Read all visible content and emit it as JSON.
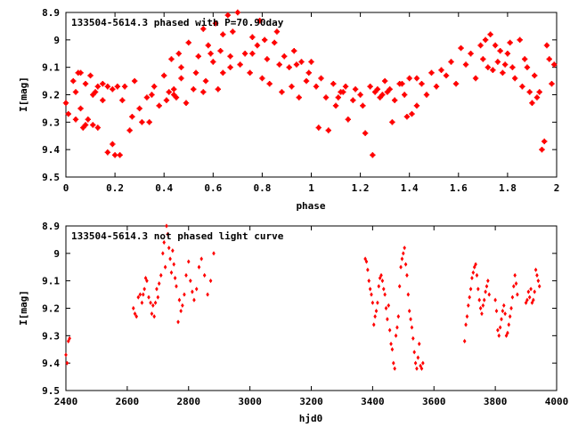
{
  "colors": {
    "marker": "#ff0000",
    "axis": "#000000",
    "background": "#ffffff"
  },
  "chart_data": [
    {
      "type": "scatter",
      "title": "133504-5614.3 phased with P=70.90day",
      "xlabel": "phase",
      "ylabel": "I[mag]",
      "xlim": [
        0,
        2
      ],
      "ylim": [
        8.9,
        9.5
      ],
      "y_inverted": true,
      "xticks": [
        "0",
        "0.2",
        "0.4",
        "0.6",
        "0.8",
        "1",
        "1.2",
        "1.4",
        "1.6",
        "1.8",
        "2"
      ],
      "yticks": [
        "8.9",
        "9",
        "9.1",
        "9.2",
        "9.3",
        "9.4",
        "9.5"
      ],
      "grid": false,
      "marker": "star",
      "x": [
        0.0,
        0.01,
        0.03,
        0.04,
        0.05,
        0.06,
        0.07,
        0.08,
        0.09,
        0.1,
        0.11,
        0.12,
        0.13,
        0.15,
        0.17,
        0.19,
        0.2,
        0.21,
        0.22,
        0.23,
        0.24,
        0.26,
        0.27,
        0.28,
        0.3,
        0.31,
        0.33,
        0.34,
        0.36,
        0.38,
        0.4,
        0.41,
        0.43,
        0.44,
        0.45,
        0.46,
        0.47,
        0.49,
        0.5,
        0.52,
        0.53,
        0.54,
        0.56,
        0.57,
        0.58,
        0.6,
        0.61,
        0.62,
        0.63,
        0.64,
        0.66,
        0.67,
        0.68,
        0.7,
        0.71,
        0.73,
        0.75,
        0.76,
        0.78,
        0.79,
        0.8,
        0.82,
        0.83,
        0.85,
        0.86,
        0.88,
        0.89,
        0.91,
        0.92,
        0.93,
        0.95,
        0.96,
        0.98,
        0.99,
        1.0,
        1.02,
        1.03,
        1.04,
        1.06,
        1.07,
        1.09,
        1.1,
        1.12,
        1.14,
        1.15,
        1.17,
        1.18,
        1.2,
        1.21,
        1.22,
        1.24,
        1.25,
        1.26,
        1.28,
        1.3,
        1.31,
        1.33,
        1.34,
        1.36,
        1.38,
        1.4,
        1.41,
        1.43,
        1.45,
        1.47,
        1.49,
        1.51,
        1.53,
        1.55,
        1.57,
        1.59,
        1.61,
        1.63,
        1.65,
        1.67,
        1.69,
        1.7,
        1.71,
        1.72,
        1.73,
        1.74,
        1.75,
        1.76,
        1.77,
        1.78,
        1.79,
        1.8,
        1.81,
        1.82,
        1.83,
        1.85,
        1.86,
        1.87,
        1.88,
        1.89,
        1.9,
        1.91,
        1.92,
        1.93,
        1.94,
        1.95,
        1.96,
        1.97,
        1.98,
        1.99
      ],
      "y": [
        9.23,
        9.27,
        9.15,
        9.29,
        9.12,
        9.25,
        9.32,
        9.16,
        9.29,
        9.13,
        9.31,
        9.19,
        9.32,
        9.16,
        9.41,
        9.38,
        9.42,
        9.17,
        9.42,
        9.22,
        9.17,
        9.33,
        9.28,
        9.15,
        9.25,
        9.3,
        9.21,
        9.3,
        9.17,
        9.24,
        9.13,
        9.22,
        9.07,
        9.18,
        9.21,
        9.05,
        9.14,
        9.23,
        9.01,
        9.18,
        9.12,
        9.06,
        8.96,
        9.15,
        9.02,
        9.08,
        8.94,
        9.18,
        9.04,
        9.12,
        8.91,
        9.06,
        8.97,
        8.9,
        9.09,
        9.05,
        9.12,
        8.99,
        9.02,
        8.93,
        9.14,
        9.07,
        9.16,
        9.01,
        8.97,
        9.19,
        9.06,
        9.1,
        9.17,
        9.04,
        9.21,
        9.08,
        9.15,
        9.12,
        9.08,
        9.17,
        9.32,
        9.14,
        9.21,
        9.33,
        9.16,
        9.24,
        9.19,
        9.17,
        9.29,
        9.22,
        9.18,
        9.2,
        9.24,
        9.34,
        9.17,
        9.42,
        9.19,
        9.21,
        9.15,
        9.19,
        9.3,
        9.22,
        9.16,
        9.2,
        9.14,
        9.27,
        9.24,
        9.16,
        9.2,
        9.12,
        9.17,
        9.11,
        9.13,
        9.08,
        9.16,
        9.03,
        9.09,
        9.05,
        9.14,
        9.02,
        9.07,
        9.0,
        9.1,
        8.98,
        9.11,
        9.02,
        9.08,
        9.04,
        9.12,
        9.09,
        9.05,
        9.01,
        9.1,
        9.14,
        9.0,
        9.17,
        9.07,
        9.1,
        9.19,
        9.23,
        9.13,
        9.21,
        9.19,
        9.4,
        9.37,
        9.02,
        9.07,
        9.16,
        9.09
      ],
      "markers": [
        {
          "x": 0.04,
          "y": 9.19
        },
        {
          "x": 0.06,
          "y": 9.12
        },
        {
          "x": 0.08,
          "y": 9.31
        },
        {
          "x": 0.11,
          "y": 9.2
        },
        {
          "x": 0.13,
          "y": 9.17
        },
        {
          "x": 0.15,
          "y": 9.22
        },
        {
          "x": 0.17,
          "y": 9.17
        },
        {
          "x": 0.19,
          "y": 9.18
        },
        {
          "x": 0.35,
          "y": 9.2
        },
        {
          "x": 0.42,
          "y": 9.19
        },
        {
          "x": 0.44,
          "y": 9.2
        },
        {
          "x": 0.47,
          "y": 9.1
        },
        {
          "x": 0.56,
          "y": 9.19
        },
        {
          "x": 0.59,
          "y": 9.05
        },
        {
          "x": 0.64,
          "y": 8.98
        },
        {
          "x": 0.67,
          "y": 9.1
        },
        {
          "x": 0.76,
          "y": 9.05
        },
        {
          "x": 0.81,
          "y": 9.0
        },
        {
          "x": 0.87,
          "y": 9.09
        },
        {
          "x": 0.94,
          "y": 9.09
        },
        {
          "x": 1.11,
          "y": 9.21
        },
        {
          "x": 1.13,
          "y": 9.19
        },
        {
          "x": 1.27,
          "y": 9.18
        },
        {
          "x": 1.29,
          "y": 9.2
        },
        {
          "x": 1.32,
          "y": 9.18
        },
        {
          "x": 1.37,
          "y": 9.16
        },
        {
          "x": 1.39,
          "y": 9.28
        },
        {
          "x": 1.43,
          "y": 9.14
        }
      ]
    },
    {
      "type": "scatter",
      "title": "133504-5614.3 not phased light curve",
      "xlabel": "hjd0",
      "ylabel": "I[mag]",
      "xlim": [
        2400,
        4000
      ],
      "ylim": [
        8.9,
        9.5
      ],
      "y_inverted": true,
      "xticks": [
        "2400",
        "2600",
        "2800",
        "3000",
        "3200",
        "3400",
        "3600",
        "3800",
        "4000"
      ],
      "yticks": [
        "8.9",
        "9",
        "9.1",
        "9.2",
        "9.3",
        "9.4",
        "9.5"
      ],
      "grid": false,
      "marker": "diamond",
      "x": [
        2400,
        2404,
        2408,
        2412,
        2620,
        2625,
        2630,
        2636,
        2642,
        2648,
        2652,
        2656,
        2660,
        2664,
        2670,
        2676,
        2680,
        2684,
        2688,
        2692,
        2696,
        2700,
        2704,
        2710,
        2716,
        2720,
        2724,
        2728,
        2732,
        2736,
        2740,
        2744,
        2748,
        2752,
        2756,
        2760,
        2766,
        2770,
        2775,
        2780,
        2786,
        2792,
        2800,
        2806,
        2812,
        2818,
        2826,
        2834,
        2842,
        2852,
        2862,
        2872,
        2882,
        3376,
        3380,
        3384,
        3388,
        3392,
        3396,
        3400,
        3404,
        3408,
        3412,
        3416,
        3420,
        3424,
        3428,
        3432,
        3436,
        3440,
        3444,
        3448,
        3452,
        3456,
        3460,
        3464,
        3468,
        3472,
        3476,
        3480,
        3484,
        3488,
        3492,
        3496,
        3500,
        3504,
        3508,
        3512,
        3516,
        3520,
        3524,
        3528,
        3532,
        3536,
        3540,
        3544,
        3548,
        3552,
        3556,
        3560,
        3564,
        3700,
        3704,
        3708,
        3712,
        3716,
        3720,
        3724,
        3728,
        3732,
        3736,
        3740,
        3744,
        3748,
        3752,
        3756,
        3760,
        3764,
        3768,
        3772,
        3776,
        3780,
        3800,
        3804,
        3808,
        3812,
        3816,
        3820,
        3824,
        3828,
        3832,
        3836,
        3840,
        3844,
        3848,
        3852,
        3856,
        3860,
        3864,
        3868,
        3872,
        3900,
        3904,
        3908,
        3912,
        3916,
        3920,
        3924,
        3928,
        3932,
        3936,
        3940,
        3944
      ],
      "y": [
        9.37,
        9.4,
        9.32,
        9.31,
        9.2,
        9.22,
        9.23,
        9.16,
        9.15,
        9.18,
        9.15,
        9.13,
        9.09,
        9.1,
        9.16,
        9.18,
        9.22,
        9.19,
        9.23,
        9.18,
        9.13,
        9.16,
        9.11,
        9.08,
        9.0,
        8.96,
        9.05,
        8.9,
        8.93,
        8.98,
        9.02,
        9.07,
        8.99,
        9.04,
        9.09,
        9.12,
        9.25,
        9.17,
        9.21,
        9.19,
        9.15,
        9.08,
        9.03,
        9.1,
        9.14,
        9.17,
        9.13,
        9.05,
        9.02,
        9.08,
        9.15,
        9.1,
        9.0,
        9.02,
        9.03,
        9.06,
        9.1,
        9.13,
        9.15,
        9.18,
        9.26,
        9.23,
        9.21,
        9.18,
        9.12,
        9.09,
        9.08,
        9.1,
        9.13,
        9.15,
        9.2,
        9.24,
        9.19,
        9.28,
        9.33,
        9.35,
        9.4,
        9.42,
        9.3,
        9.27,
        9.23,
        9.12,
        9.05,
        9.02,
        9.0,
        8.98,
        9.04,
        9.08,
        9.15,
        9.21,
        9.24,
        9.27,
        9.31,
        9.36,
        9.4,
        9.42,
        9.38,
        9.33,
        9.41,
        9.42,
        9.4,
        9.32,
        9.26,
        9.23,
        9.19,
        9.16,
        9.13,
        9.09,
        9.07,
        9.05,
        9.04,
        9.08,
        9.13,
        9.17,
        9.2,
        9.22,
        9.19,
        9.17,
        9.14,
        9.12,
        9.1,
        9.15,
        9.17,
        9.21,
        9.28,
        9.3,
        9.27,
        9.24,
        9.21,
        9.19,
        9.22,
        9.3,
        9.29,
        9.26,
        9.23,
        9.2,
        9.16,
        9.12,
        9.08,
        9.11,
        9.15,
        9.18,
        9.17,
        9.14,
        9.16,
        9.13,
        9.18,
        9.17,
        9.14,
        9.06,
        9.08,
        9.1,
        9.12
      ]
    }
  ]
}
